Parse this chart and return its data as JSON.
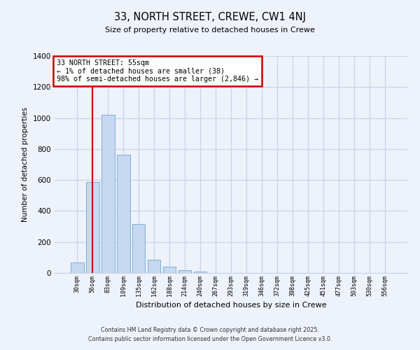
{
  "title": "33, NORTH STREET, CREWE, CW1 4NJ",
  "subtitle": "Size of property relative to detached houses in Crewe",
  "xlabel": "Distribution of detached houses by size in Crewe",
  "ylabel": "Number of detached properties",
  "bar_color": "#c6d9f1",
  "bar_edge_color": "#7bafd4",
  "categories": [
    "30sqm",
    "56sqm",
    "83sqm",
    "109sqm",
    "135sqm",
    "162sqm",
    "188sqm",
    "214sqm",
    "240sqm",
    "267sqm",
    "293sqm",
    "319sqm",
    "346sqm",
    "372sqm",
    "398sqm",
    "425sqm",
    "451sqm",
    "477sqm",
    "503sqm",
    "530sqm",
    "556sqm"
  ],
  "values": [
    68,
    585,
    1022,
    762,
    318,
    88,
    42,
    20,
    8,
    2,
    0,
    0,
    0,
    0,
    0,
    0,
    0,
    0,
    0,
    0,
    0
  ],
  "ylim": [
    0,
    1400
  ],
  "yticks": [
    0,
    200,
    400,
    600,
    800,
    1000,
    1200,
    1400
  ],
  "property_line_x": 1,
  "annotation_title": "33 NORTH STREET: 55sqm",
  "annotation_line1": "← 1% of detached houses are smaller (38)",
  "annotation_line2": "98% of semi-detached houses are larger (2,846) →",
  "annotation_box_color": "#ffffff",
  "annotation_box_edge": "#cc0000",
  "vline_color": "#cc0000",
  "footer1": "Contains HM Land Registry data © Crown copyright and database right 2025.",
  "footer2": "Contains public sector information licensed under the Open Government Licence v3.0.",
  "background_color": "#eef2fb",
  "grid_color": "#cdd5e8"
}
